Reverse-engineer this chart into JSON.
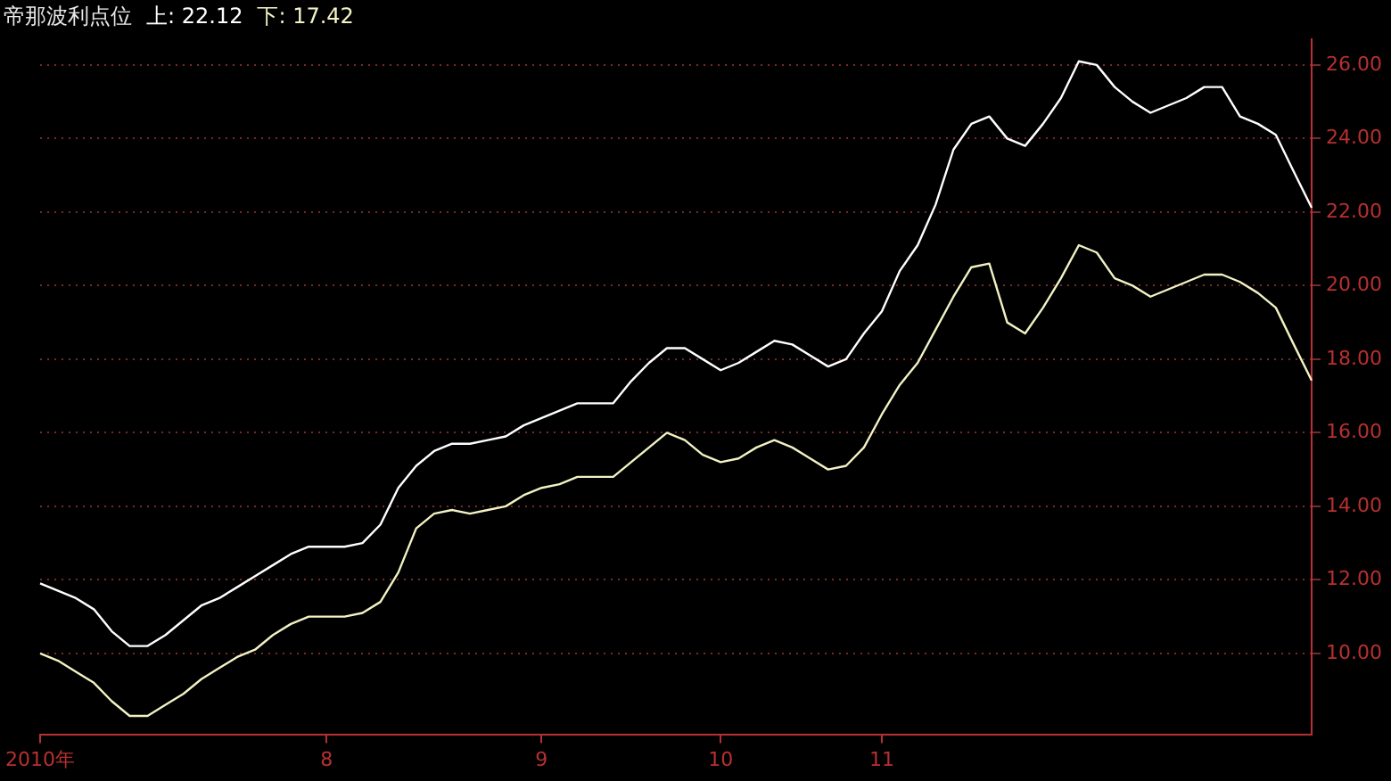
{
  "chart_data": {
    "type": "line",
    "title": "帝那波利点位",
    "grid": "y",
    "marker": "none",
    "line_style": "solid",
    "categories": [
      "2010年",
      null,
      null,
      null,
      null,
      null,
      null,
      null,
      null,
      null,
      null,
      null,
      null,
      null,
      null,
      null,
      "8",
      null,
      null,
      null,
      null,
      null,
      null,
      null,
      null,
      null,
      null,
      null,
      "9",
      null,
      null,
      null,
      null,
      null,
      null,
      null,
      null,
      null,
      "10",
      null,
      null,
      null,
      null,
      null,
      null,
      null,
      null,
      "11",
      null,
      null,
      null,
      null,
      null,
      null,
      null,
      null,
      null,
      null,
      null,
      null,
      null,
      null,
      null,
      null,
      null,
      null,
      null,
      null,
      null,
      null,
      null,
      null
    ],
    "ylim": [
      7.8,
      26.7
    ],
    "yticks": [
      {
        "value": 10,
        "label": "10.00"
      },
      {
        "value": 12,
        "label": "12.00"
      },
      {
        "value": 14,
        "label": "14.00"
      },
      {
        "value": 16,
        "label": "16.00"
      },
      {
        "value": 18,
        "label": "18.00"
      },
      {
        "value": 20,
        "label": "20.00"
      },
      {
        "value": 22,
        "label": "22.00"
      },
      {
        "value": 24,
        "label": "24.00"
      },
      {
        "value": 26,
        "label": "26.00"
      }
    ],
    "series": [
      {
        "name": "上: 22.12",
        "color": "#ffffff",
        "values": [
          11.9,
          11.7,
          11.5,
          11.2,
          10.6,
          10.2,
          10.2,
          10.5,
          10.9,
          11.3,
          11.5,
          11.8,
          12.1,
          12.4,
          12.7,
          12.9,
          12.9,
          12.9,
          13.0,
          13.5,
          14.5,
          15.1,
          15.5,
          15.7,
          15.7,
          15.8,
          15.9,
          16.2,
          16.4,
          16.6,
          16.8,
          16.8,
          16.8,
          17.4,
          17.9,
          18.3,
          18.3,
          18.0,
          17.7,
          17.9,
          18.2,
          18.5,
          18.4,
          18.1,
          17.8,
          18.0,
          18.7,
          19.3,
          20.4,
          21.1,
          22.2,
          23.7,
          24.4,
          24.6,
          24.0,
          23.8,
          24.4,
          25.1,
          26.1,
          26.0,
          25.4,
          25.0,
          24.7,
          24.9,
          25.1,
          25.4,
          25.4,
          24.6,
          24.4,
          24.1,
          23.1,
          22.12
        ]
      },
      {
        "name": "下: 17.42",
        "color": "#f2f2c4",
        "values": [
          10.0,
          9.8,
          9.5,
          9.2,
          8.7,
          8.3,
          8.3,
          8.6,
          8.9,
          9.3,
          9.6,
          9.9,
          10.1,
          10.5,
          10.8,
          11.0,
          11.0,
          11.0,
          11.1,
          11.4,
          12.2,
          13.4,
          13.8,
          13.9,
          13.8,
          13.9,
          14.0,
          14.3,
          14.5,
          14.6,
          14.8,
          14.8,
          14.8,
          15.2,
          15.6,
          16.0,
          15.8,
          15.4,
          15.2,
          15.3,
          15.6,
          15.8,
          15.6,
          15.3,
          15.0,
          15.1,
          15.6,
          16.5,
          17.3,
          17.9,
          18.8,
          19.7,
          20.5,
          20.6,
          19.0,
          18.7,
          19.4,
          20.2,
          21.1,
          20.9,
          20.2,
          20.0,
          19.7,
          19.9,
          20.1,
          20.3,
          20.3,
          20.1,
          19.8,
          19.4,
          18.4,
          17.42
        ]
      }
    ]
  }
}
